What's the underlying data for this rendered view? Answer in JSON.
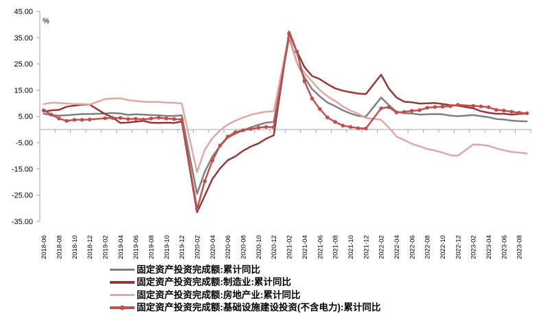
{
  "chart_data": {
    "type": "line",
    "title": "",
    "ylabel_unit": "%",
    "ylim": [
      -35,
      45
    ],
    "ytick_step": 10,
    "ytick_labels": [
      "45.00",
      "35.00",
      "25.00",
      "15.00",
      "5.00",
      "-5.00",
      "-15.00",
      "-25.00",
      "-35.00"
    ],
    "grid": false,
    "legend_position": "bottom-left",
    "axis_color": "#A6A6A6",
    "text_color": "#000000",
    "x_slots": 64,
    "label_every_slots": 2,
    "x_note_first_slot": "2018-06",
    "x_tick_labels": [
      "2018-06",
      "2018-08",
      "2018-10",
      "2018-12",
      "2019-02",
      "2019-04",
      "2019-06",
      "2019-08",
      "2019-10",
      "2019-12",
      "2020-02",
      "2020-04",
      "2020-06",
      "2020-08",
      "2020-10",
      "2020-12",
      "2021-02",
      "2021-04",
      "2021-06",
      "2021-08",
      "2021-10",
      "2021-12",
      "2022-02",
      "2022-04",
      "2022-06",
      "2022-08",
      "2022-10",
      "2022-12",
      "2023-02",
      "2023-04",
      "2023-06",
      "2023-08"
    ],
    "series": [
      {
        "name": "固定资产投资完成额:累计同比",
        "color": "#7F7F7F",
        "marker": false,
        "values": [
          6.0,
          5.5,
          5.3,
          5.4,
          5.7,
          5.9,
          5.9,
          null,
          6.1,
          6.3,
          6.1,
          5.6,
          5.8,
          5.7,
          5.5,
          5.4,
          5.2,
          5.2,
          5.4,
          null,
          -24.5,
          -16.1,
          -10.3,
          -6.3,
          -3.1,
          -1.6,
          -0.3,
          0.8,
          1.8,
          2.6,
          2.9,
          null,
          35.0,
          25.6,
          19.9,
          15.4,
          12.6,
          10.3,
          8.9,
          7.3,
          6.1,
          5.2,
          4.9,
          null,
          12.2,
          9.3,
          6.8,
          6.2,
          6.1,
          5.7,
          5.8,
          5.9,
          5.8,
          5.3,
          5.1,
          null,
          5.5,
          5.1,
          4.7,
          4.0,
          3.8,
          3.4,
          3.2,
          3.1
        ]
      },
      {
        "name": "固定资产投资完成额:制造业:累计同比",
        "color": "#943634",
        "marker": false,
        "values": [
          6.8,
          7.3,
          7.5,
          8.7,
          9.1,
          9.5,
          9.5,
          null,
          5.9,
          4.6,
          2.5,
          2.7,
          3.0,
          3.3,
          2.6,
          2.5,
          2.6,
          2.5,
          3.1,
          null,
          -31.5,
          -25.2,
          -18.8,
          -14.8,
          -11.7,
          -10.2,
          -8.1,
          -6.5,
          -5.3,
          -3.5,
          -2.2,
          null,
          37.3,
          29.8,
          23.8,
          20.4,
          19.2,
          17.3,
          15.7,
          14.8,
          14.2,
          13.7,
          13.5,
          null,
          20.9,
          15.6,
          12.2,
          10.6,
          10.4,
          9.9,
          10.0,
          10.1,
          9.7,
          9.3,
          9.1,
          null,
          8.1,
          7.0,
          6.4,
          6.0,
          6.0,
          5.7,
          5.9,
          6.2
        ]
      },
      {
        "name": "固定资产投资完成额:房地产业:累计同比",
        "color": "#E2A7A4",
        "marker": false,
        "values": [
          9.7,
          10.2,
          10.1,
          9.9,
          9.7,
          9.7,
          9.5,
          null,
          11.6,
          11.8,
          11.9,
          11.2,
          10.9,
          10.6,
          10.5,
          10.5,
          10.3,
          10.2,
          9.9,
          null,
          -16.3,
          -7.7,
          -3.3,
          -0.3,
          1.9,
          3.4,
          4.6,
          5.6,
          6.3,
          6.8,
          7.0,
          null,
          36.2,
          25.6,
          21.6,
          18.3,
          15.0,
          12.7,
          10.9,
          8.8,
          7.2,
          6.0,
          4.4,
          null,
          3.7,
          0.7,
          -2.7,
          -4.0,
          -5.4,
          -6.4,
          -7.4,
          -8.0,
          -8.8,
          -9.8,
          -10.0,
          null,
          -5.7,
          -5.8,
          -6.2,
          -7.2,
          -7.9,
          -8.5,
          -8.8,
          -9.1
        ]
      },
      {
        "name": "固定资产投资完成额:基础设施建设投资(不含电力):累计同比",
        "color": "#C0504D",
        "marker": true,
        "values": [
          7.3,
          5.7,
          4.2,
          3.3,
          3.7,
          3.7,
          3.8,
          null,
          4.3,
          4.4,
          4.4,
          4.0,
          4.1,
          3.8,
          4.2,
          4.5,
          4.2,
          4.0,
          3.8,
          null,
          -30.3,
          -19.7,
          -11.8,
          -6.1,
          -2.7,
          -1.0,
          -0.3,
          0.2,
          0.7,
          1.0,
          0.9,
          null,
          36.6,
          29.7,
          18.4,
          11.8,
          7.8,
          4.6,
          2.9,
          1.5,
          1.0,
          0.5,
          0.4,
          null,
          8.1,
          8.5,
          6.5,
          6.7,
          7.1,
          7.4,
          8.3,
          8.6,
          8.7,
          8.9,
          9.4,
          null,
          9.0,
          8.8,
          8.5,
          7.5,
          7.2,
          6.8,
          6.4,
          6.2
        ]
      }
    ]
  }
}
